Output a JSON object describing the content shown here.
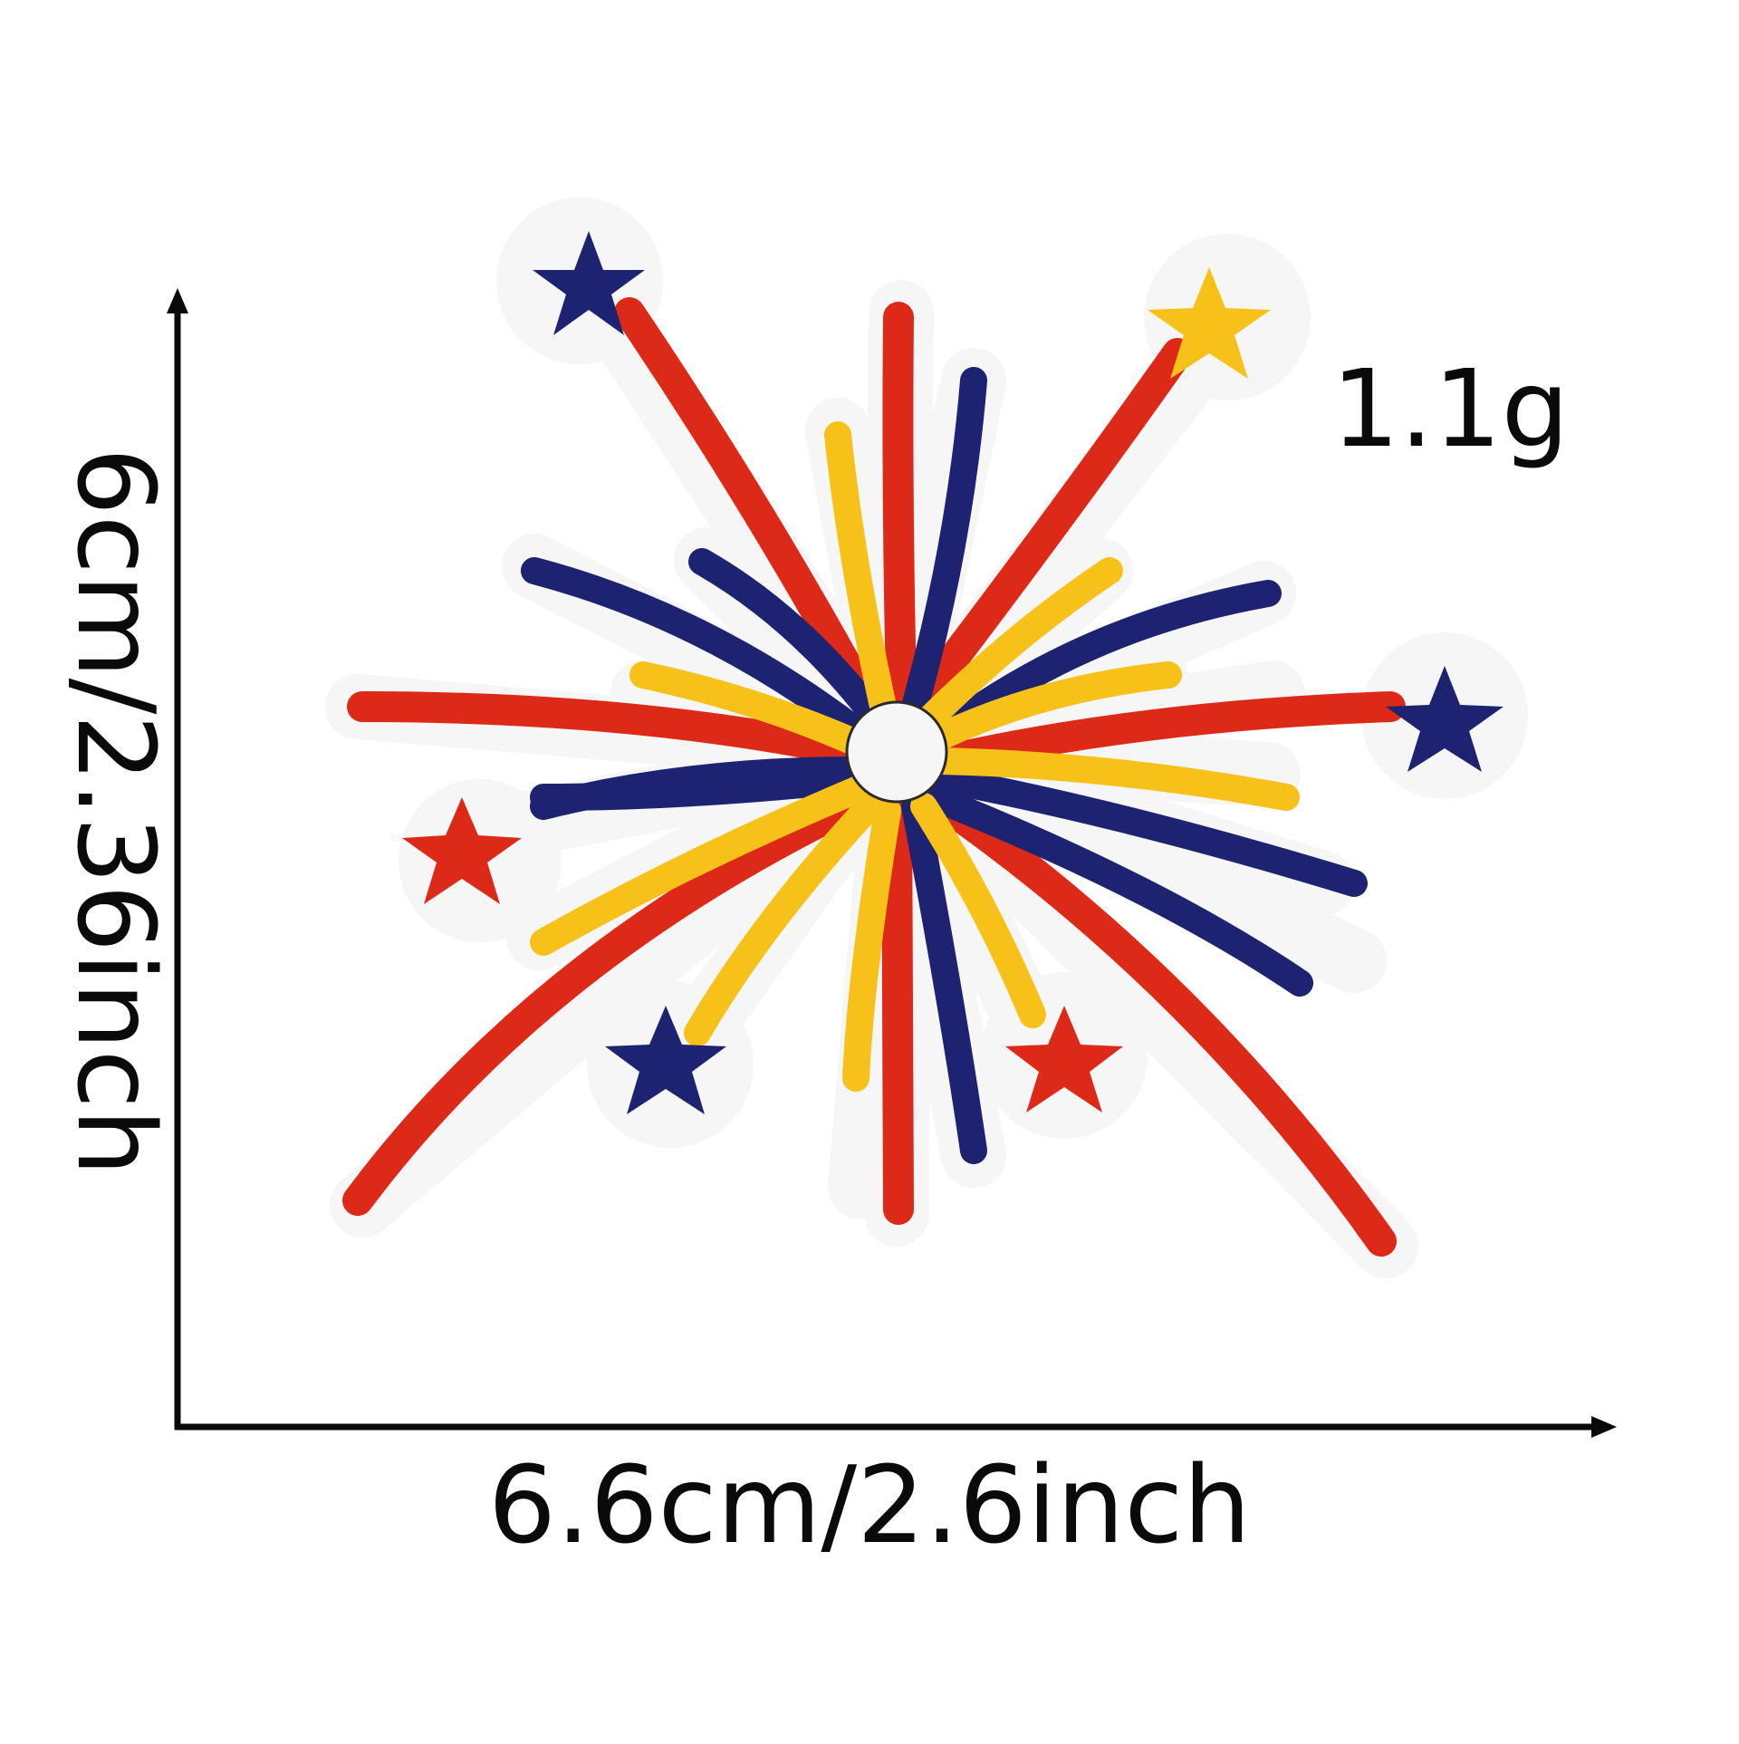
{
  "image": {
    "subject": "embroidered-firework-patch",
    "background_color": "#ffffff",
    "colors": {
      "felt": "#f6f6f6",
      "red": "#dd2a18",
      "navy": "#1d2370",
      "yellow": "#f6c21a",
      "ink": "#0a0a0a"
    }
  },
  "labels": {
    "weight": "1.1g",
    "height": "6cm/2.36inch",
    "width": "6.6cm/2.6inch"
  }
}
